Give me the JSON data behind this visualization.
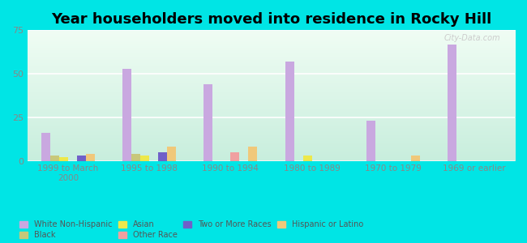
{
  "title": "Year householders moved into residence in Rocky Hill",
  "categories": [
    "1999 to March\n2000",
    "1995 to 1998",
    "1990 to 1994",
    "1980 to 1989",
    "1970 to 1979",
    "1969 or earlier"
  ],
  "series": {
    "White Non-Hispanic": [
      16,
      53,
      44,
      57,
      23,
      67
    ],
    "Black": [
      3,
      4,
      0,
      0,
      0,
      0
    ],
    "Asian": [
      2,
      3,
      0,
      3,
      0,
      0
    ],
    "Other Race": [
      0,
      0,
      5,
      0,
      0,
      0
    ],
    "Two or More Races": [
      3,
      5,
      0,
      0,
      0,
      0
    ],
    "Hispanic or Latino": [
      4,
      8,
      8,
      0,
      3,
      0
    ]
  },
  "colors": {
    "White Non-Hispanic": "#c9a8e0",
    "Black": "#c8c87a",
    "Asian": "#ede84a",
    "Other Race": "#f0a0a0",
    "Two or More Races": "#7060c8",
    "Hispanic or Latino": "#f0c87a"
  },
  "legend_order": [
    "White Non-Hispanic",
    "Black",
    "Asian",
    "Other Race",
    "Two or More Races",
    "Hispanic or Latino"
  ],
  "ylim": [
    0,
    75
  ],
  "yticks": [
    0,
    25,
    50,
    75
  ],
  "outer_bg": "#00e5e5",
  "bar_width": 0.11,
  "title_fontsize": 13
}
